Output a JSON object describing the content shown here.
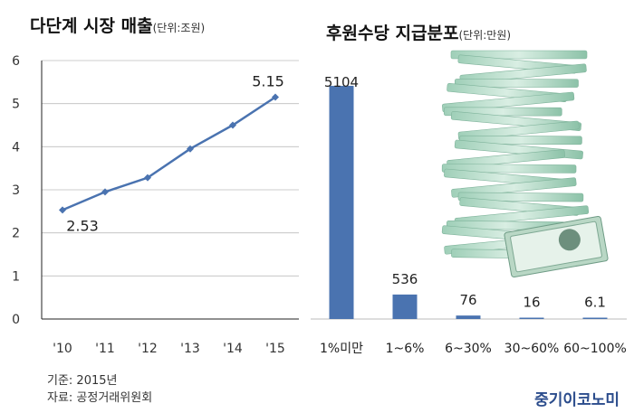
{
  "brand": "중기이코노미",
  "notes": {
    "basis": "기준: 2015년",
    "source": "자료: 공정거래위원회"
  },
  "colors": {
    "series": "#4a73b0",
    "line": "#4a73b0",
    "axis": "#333333"
  },
  "chart_data": [
    {
      "type": "line",
      "title": "다단계 시장 매출",
      "unit": "(단위:조원)",
      "x": [
        "'10",
        "'11",
        "'12",
        "'13",
        "'14",
        "'15"
      ],
      "series": [
        {
          "values": [
            2.53,
            2.95,
            3.28,
            3.95,
            4.5,
            5.15
          ]
        }
      ],
      "data_labels": [
        {
          "index": 0,
          "text": "2.53"
        },
        {
          "index": 5,
          "text": "5.15"
        }
      ],
      "ylim": [
        0,
        6
      ],
      "yticks": [
        "0",
        "1",
        "2",
        "3",
        "4",
        "5",
        "6"
      ],
      "grid": true
    },
    {
      "type": "bar",
      "title": "후원수당 지급분포",
      "unit": "(단위:만원)",
      "categories": [
        "1%미만",
        "1~6%",
        "6~30%",
        "30~60%",
        "60~100%"
      ],
      "values": [
        5104,
        536,
        76,
        16,
        6.1
      ],
      "value_labels": [
        "5104",
        "536",
        "76",
        "16",
        "6.1"
      ],
      "ylim": [
        0,
        5400
      ]
    }
  ]
}
